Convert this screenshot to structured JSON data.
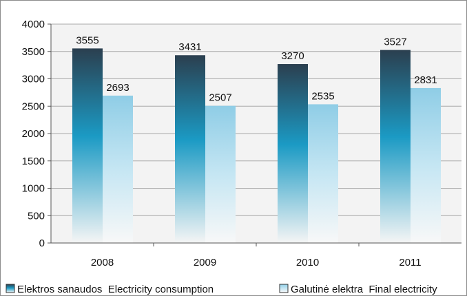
{
  "chart_data": {
    "type": "bar",
    "categories": [
      "2008",
      "2009",
      "2010",
      "2011"
    ],
    "series": [
      {
        "name": "Elektros sanaudos  Electricity consumption",
        "values": [
          3555,
          3431,
          3270,
          3527
        ],
        "color": "#1f9ec8"
      },
      {
        "name": "Galutinė elektra  Final electricity",
        "values": [
          2693,
          2507,
          2535,
          2831
        ],
        "color": "#9fd5ea"
      }
    ],
    "ylim": [
      0,
      4000
    ],
    "yticks": [
      0,
      500,
      1000,
      1500,
      2000,
      2500,
      3000,
      3500,
      4000
    ],
    "grid": true,
    "legend_position": "bottom",
    "plot_background": "#f3f3f3"
  }
}
